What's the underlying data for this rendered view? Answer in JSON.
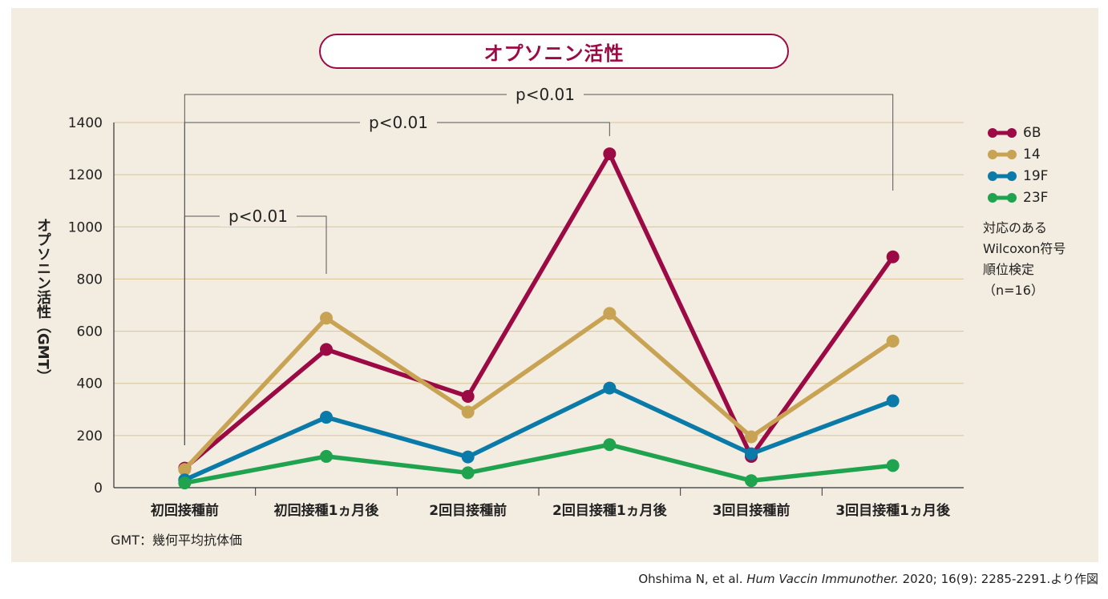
{
  "footnote": "GMT：幾何平均抗体価",
  "source": {
    "prefix": "Ohshima N, et al. ",
    "journal": "Hum Vaccin Immunother.",
    "suffix": " 2020; 16(9): 2285-2291.より作図"
  },
  "legend_note": [
    "対応のある",
    "Wilcoxon符号",
    "順位検定",
    "（n=16）"
  ],
  "chart_data": {
    "type": "line",
    "title": "オプソニン活性",
    "ylabel": "オプソニン活性（GMT）",
    "xlabel": "",
    "ylim": [
      0,
      1400
    ],
    "yticks": [
      0,
      200,
      400,
      600,
      800,
      1000,
      1200,
      1400
    ],
    "grid": true,
    "legend_position": "right",
    "categories": [
      "初回接種前",
      "初回接種1ヵ月後",
      "2回目接種前",
      "2回目接種1ヵ月後",
      "3回目接種前",
      "3回目接種1ヵ月後"
    ],
    "series": [
      {
        "name": "6B",
        "color": "#9c0a45",
        "values": [
          75,
          530,
          350,
          1280,
          120,
          885
        ]
      },
      {
        "name": "14",
        "color": "#c9a354",
        "values": [
          70,
          650,
          290,
          668,
          195,
          562
        ]
      },
      {
        "name": "19F",
        "color": "#0a7aa8",
        "values": [
          30,
          270,
          118,
          382,
          130,
          333
        ]
      },
      {
        "name": "23F",
        "color": "#1fa34e",
        "values": [
          18,
          120,
          57,
          165,
          27,
          85
        ]
      }
    ],
    "annotations": [
      {
        "label": "p<0.01",
        "from": 0,
        "to": 1
      },
      {
        "label": "p<0.01",
        "from": 0,
        "to": 3
      },
      {
        "label": "p<0.01",
        "from": 0,
        "to": 5
      }
    ]
  }
}
